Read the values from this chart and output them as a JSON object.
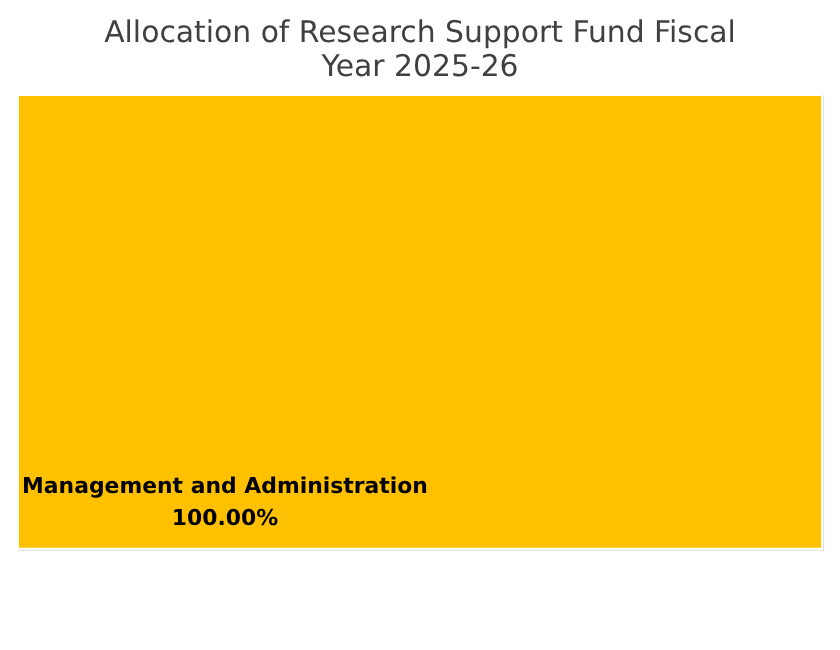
{
  "chart_data": {
    "type": "other",
    "title": "Allocation of Research Support Fund Fiscal Year 2025-26",
    "categories": [
      "Management and Administration"
    ],
    "values": [
      100
    ],
    "value_labels": [
      "100.00%"
    ],
    "colors": [
      "#ffc000"
    ]
  }
}
